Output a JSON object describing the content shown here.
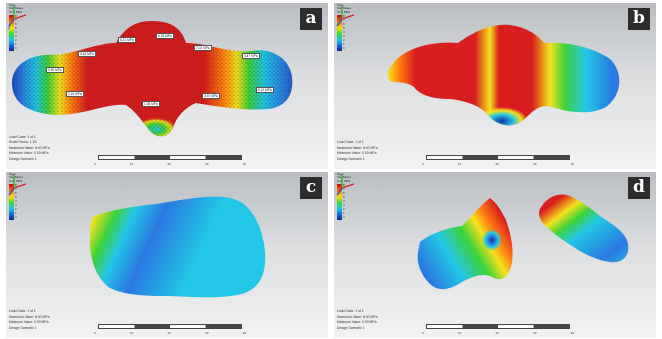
{
  "figure": {
    "panels": [
      {
        "id": "a",
        "label": "a",
        "legend_title": [
          "Type",
          "Von Mises",
          "Unit: MPa"
        ],
        "legend_ticks": [
          "8",
          "7",
          "6",
          "5",
          "4",
          "3",
          "2",
          "1",
          "0"
        ],
        "info": [
          "Load Case: 1 of 1",
          "Scale Factor: 1.00",
          "Maximum Value: 8.00 MPa",
          "Minimum Value: 0.00 MPa",
          "Design Scenario 1"
        ],
        "scale_ticks": [
          "0",
          "10",
          "20",
          "30",
          "40"
        ],
        "notes": [
          "0.95 MPa",
          "3.64 MPa",
          "5.21 MPa",
          "6.78 MPa",
          "7.02 MPa",
          "4.47 MPa",
          "2.15 MPa",
          "1.08 MPa",
          "3.91 MPa",
          "6.12 MPa"
        ],
        "shape": "tooth-mesh"
      },
      {
        "id": "b",
        "label": "b",
        "legend_title": [
          "Type",
          "Von Mises",
          "Unit: MPa"
        ],
        "legend_ticks": [
          "8",
          "7",
          "6",
          "5",
          "4",
          "3",
          "2",
          "1",
          "0"
        ],
        "info": [
          "Load Case: 1 of 1",
          "Maximum Value: 8.00 MPa",
          "Minimum Value: 0.00 MPa",
          "Design Scenario 1"
        ],
        "scale_ticks": [
          "0",
          "10",
          "20",
          "30",
          "40"
        ],
        "notes": [],
        "shape": "tooth-smooth"
      },
      {
        "id": "c",
        "label": "c",
        "legend_title": [
          "Type",
          "Von Mises",
          "Unit: MPa"
        ],
        "legend_ticks": [
          "8",
          "7",
          "6",
          "5",
          "4",
          "3",
          "2",
          "1",
          "0"
        ],
        "info": [
          "Load Case: 1 of 1",
          "Maximum Value: 8.00 MPa",
          "Minimum Value: 0.00 MPa",
          "Design Scenario 1"
        ],
        "scale_ticks": [
          "0",
          "10",
          "20",
          "30",
          "40"
        ],
        "notes": [],
        "shape": "block"
      },
      {
        "id": "d",
        "label": "d",
        "legend_title": [
          "Type",
          "Von Mises",
          "Unit: MPa"
        ],
        "legend_ticks": [
          "8",
          "7",
          "6",
          "5",
          "4",
          "3",
          "2",
          "1",
          "0"
        ],
        "info": [
          "Load Case: 1 of 1",
          "Maximum Value: 8.00 MPa",
          "Minimum Value: 0.00 MPa",
          "Design Scenario 1"
        ],
        "scale_ticks": [
          "0",
          "10",
          "20",
          "30",
          "40"
        ],
        "notes": [],
        "shape": "split"
      }
    ],
    "colors": {
      "hot": "#d81e1e",
      "orange": "#ff7a10",
      "yellow": "#f4e21c",
      "green": "#3fd23a",
      "cyan": "#22c6e6",
      "blue": "#2a78e0",
      "deep_blue": "#0d2f9e",
      "letter_box": "#2c2c2c"
    }
  }
}
